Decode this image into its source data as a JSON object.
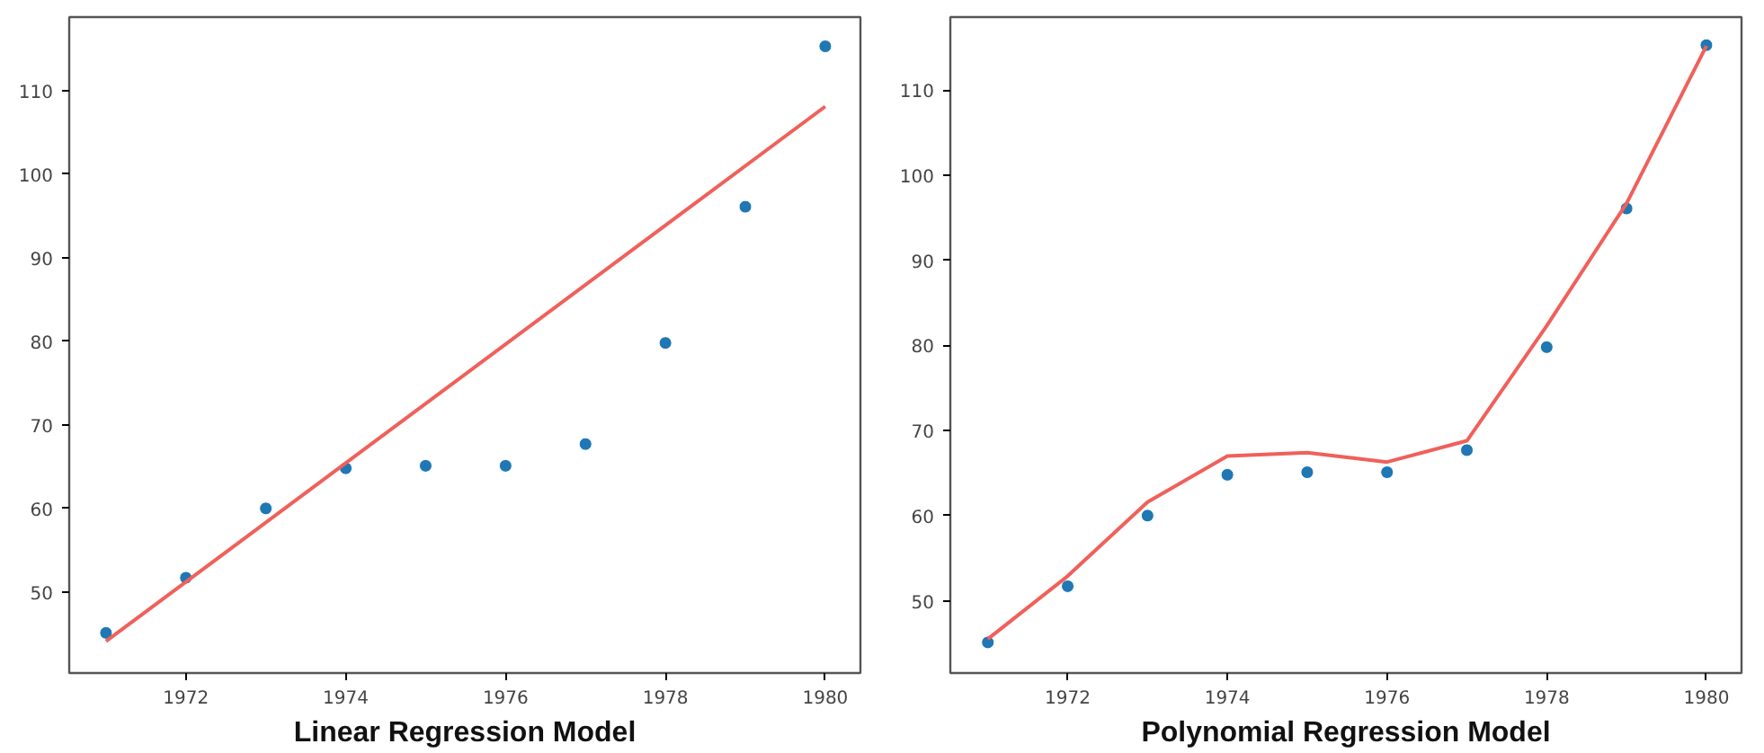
{
  "chart_data": [
    {
      "type": "scatter",
      "title": "Linear Regression Model",
      "x": [
        1971,
        1972,
        1973,
        1974,
        1975,
        1976,
        1977,
        1978,
        1979,
        1980
      ],
      "series": [
        {
          "color": "#1f77b4",
          "marker": "circle",
          "values": [
            45.1,
            51.7,
            60.0,
            64.8,
            65.1,
            65.1,
            67.7,
            79.8,
            96.1,
            115.3
          ]
        },
        {
          "type": "line",
          "color": "#f0605a",
          "marker": "none",
          "x": [
            1971,
            1980
          ],
          "values": [
            44.1,
            108.1
          ]
        }
      ],
      "xlim": [
        1970.54,
        1980.44
      ],
      "ylim": [
        40.3,
        118.8
      ],
      "xticks": [
        1972,
        1974,
        1976,
        1978,
        1980
      ],
      "yticks": [
        50,
        60,
        70,
        80,
        90,
        100,
        110
      ],
      "grid": false
    },
    {
      "type": "scatter",
      "title": "Polynomial Regression Model",
      "x": [
        1971,
        1972,
        1973,
        1974,
        1975,
        1976,
        1977,
        1978,
        1979,
        1980
      ],
      "series": [
        {
          "color": "#1f77b4",
          "marker": "circle",
          "values": [
            45.1,
            51.7,
            60.0,
            64.8,
            65.1,
            65.1,
            67.7,
            79.8,
            96.1,
            115.3
          ]
        },
        {
          "type": "line",
          "color": "#f0605a",
          "marker": "none",
          "values": [
            45.5,
            52.9,
            61.6,
            67.0,
            67.4,
            66.3,
            68.8,
            82.3,
            96.7,
            115.2
          ]
        }
      ],
      "xlim": [
        1970.53,
        1980.44
      ],
      "ylim": [
        41.5,
        118.6
      ],
      "xticks": [
        1972,
        1974,
        1976,
        1978,
        1980
      ],
      "yticks": [
        50,
        60,
        70,
        80,
        90,
        100,
        110
      ],
      "grid": false
    }
  ]
}
